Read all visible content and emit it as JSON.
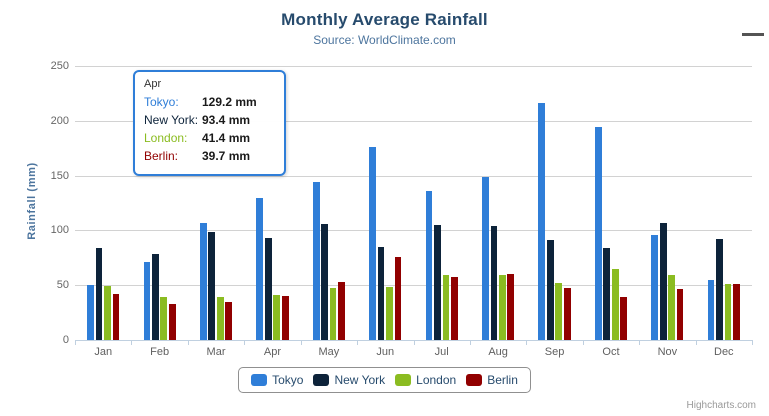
{
  "header": {
    "title": "Monthly Average Rainfall",
    "subtitle": "Source: WorldClimate.com"
  },
  "y_axis": {
    "title": "Rainfall (mm)"
  },
  "tooltip": {
    "header": "Apr",
    "rows": [
      {
        "label": "Tokyo:",
        "value": "129.2 mm",
        "color": "#2f7ed8"
      },
      {
        "label": "New York:",
        "value": "93.4 mm",
        "color": "#0d233a"
      },
      {
        "label": "London:",
        "value": "41.4 mm",
        "color": "#8bbc21"
      },
      {
        "label": "Berlin:",
        "value": "39.7 mm",
        "color": "#910000"
      }
    ]
  },
  "credits": "Highcharts.com",
  "colors": {
    "title": "#274b6d",
    "subtitle": "#4d759e",
    "grid": "#d2d2d2",
    "axis_line": "#c0d0e0",
    "axis_labels": "#606060",
    "tooltip_border": "#2f7ed8"
  },
  "chart_data": {
    "type": "bar",
    "title": "Monthly Average Rainfall",
    "subtitle": "Source: WorldClimate.com",
    "xlabel": "",
    "ylabel": "Rainfall (mm)",
    "ylim": [
      0,
      250
    ],
    "yticks": [
      0,
      50,
      100,
      150,
      200,
      250
    ],
    "grid": true,
    "legend_position": "bottom",
    "categories": [
      "Jan",
      "Feb",
      "Mar",
      "Apr",
      "May",
      "Jun",
      "Jul",
      "Aug",
      "Sep",
      "Oct",
      "Nov",
      "Dec"
    ],
    "series": [
      {
        "name": "Tokyo",
        "color": "#2f7ed8",
        "values": [
          49.9,
          71.5,
          106.4,
          129.2,
          144.0,
          176.0,
          135.6,
          148.5,
          216.4,
          194.1,
          95.6,
          54.4
        ]
      },
      {
        "name": "New York",
        "color": "#0d233a",
        "values": [
          83.6,
          78.8,
          98.5,
          93.4,
          106.0,
          84.5,
          105.0,
          104.3,
          91.2,
          83.5,
          106.6,
          92.3
        ]
      },
      {
        "name": "London",
        "color": "#8bbc21",
        "values": [
          48.9,
          38.8,
          39.3,
          41.4,
          47.0,
          48.3,
          59.0,
          59.6,
          52.4,
          65.2,
          59.3,
          51.2
        ]
      },
      {
        "name": "Berlin",
        "color": "#910000",
        "values": [
          42.4,
          33.2,
          34.5,
          39.7,
          52.6,
          75.5,
          57.4,
          60.4,
          47.6,
          39.1,
          46.8,
          51.1
        ]
      }
    ]
  }
}
